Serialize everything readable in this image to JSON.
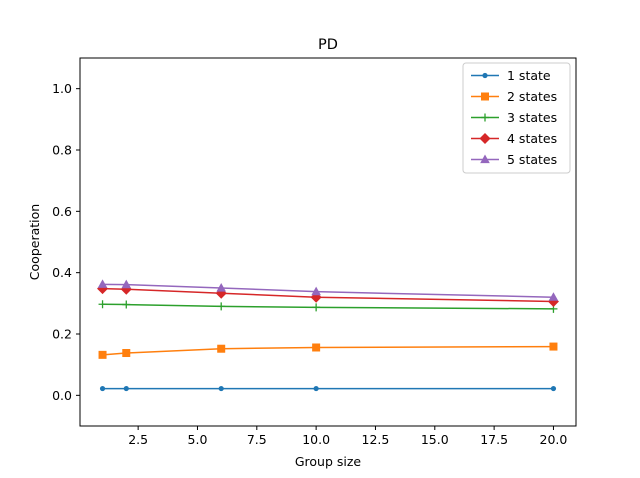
{
  "chart_data": {
    "type": "line",
    "title": "PD",
    "xlabel": "Group size",
    "ylabel": "Cooperation",
    "xlim": [
      0.05,
      20.95
    ],
    "ylim": [
      -0.1,
      1.1
    ],
    "xticks": [
      2.5,
      5.0,
      7.5,
      10.0,
      12.5,
      15.0,
      17.5,
      20.0
    ],
    "xtick_labels": [
      "2.5",
      "5.0",
      "7.5",
      "10.0",
      "12.5",
      "15.0",
      "17.5",
      "20.0"
    ],
    "yticks": [
      0.0,
      0.2,
      0.4,
      0.6,
      0.8,
      1.0
    ],
    "ytick_labels": [
      "0.0",
      "0.2",
      "0.4",
      "0.6",
      "0.8",
      "1.0"
    ],
    "grid": false,
    "legend_position": "top-right",
    "x": [
      1,
      2,
      6,
      10,
      20
    ],
    "series": [
      {
        "name": "1 state",
        "color": "#1f77b4",
        "marker": "point",
        "values": [
          0.022,
          0.022,
          0.022,
          0.022,
          0.022
        ]
      },
      {
        "name": "2 states",
        "color": "#ff7f0e",
        "marker": "square",
        "values": [
          0.132,
          0.138,
          0.152,
          0.156,
          0.159
        ]
      },
      {
        "name": "3 states",
        "color": "#2ca02c",
        "marker": "plus",
        "values": [
          0.297,
          0.296,
          0.29,
          0.287,
          0.282
        ]
      },
      {
        "name": "4 states",
        "color": "#d62728",
        "marker": "diamond",
        "values": [
          0.348,
          0.346,
          0.333,
          0.32,
          0.306
        ]
      },
      {
        "name": "5 states",
        "color": "#9467bd",
        "marker": "triangle",
        "values": [
          0.362,
          0.361,
          0.35,
          0.338,
          0.32
        ]
      }
    ]
  }
}
